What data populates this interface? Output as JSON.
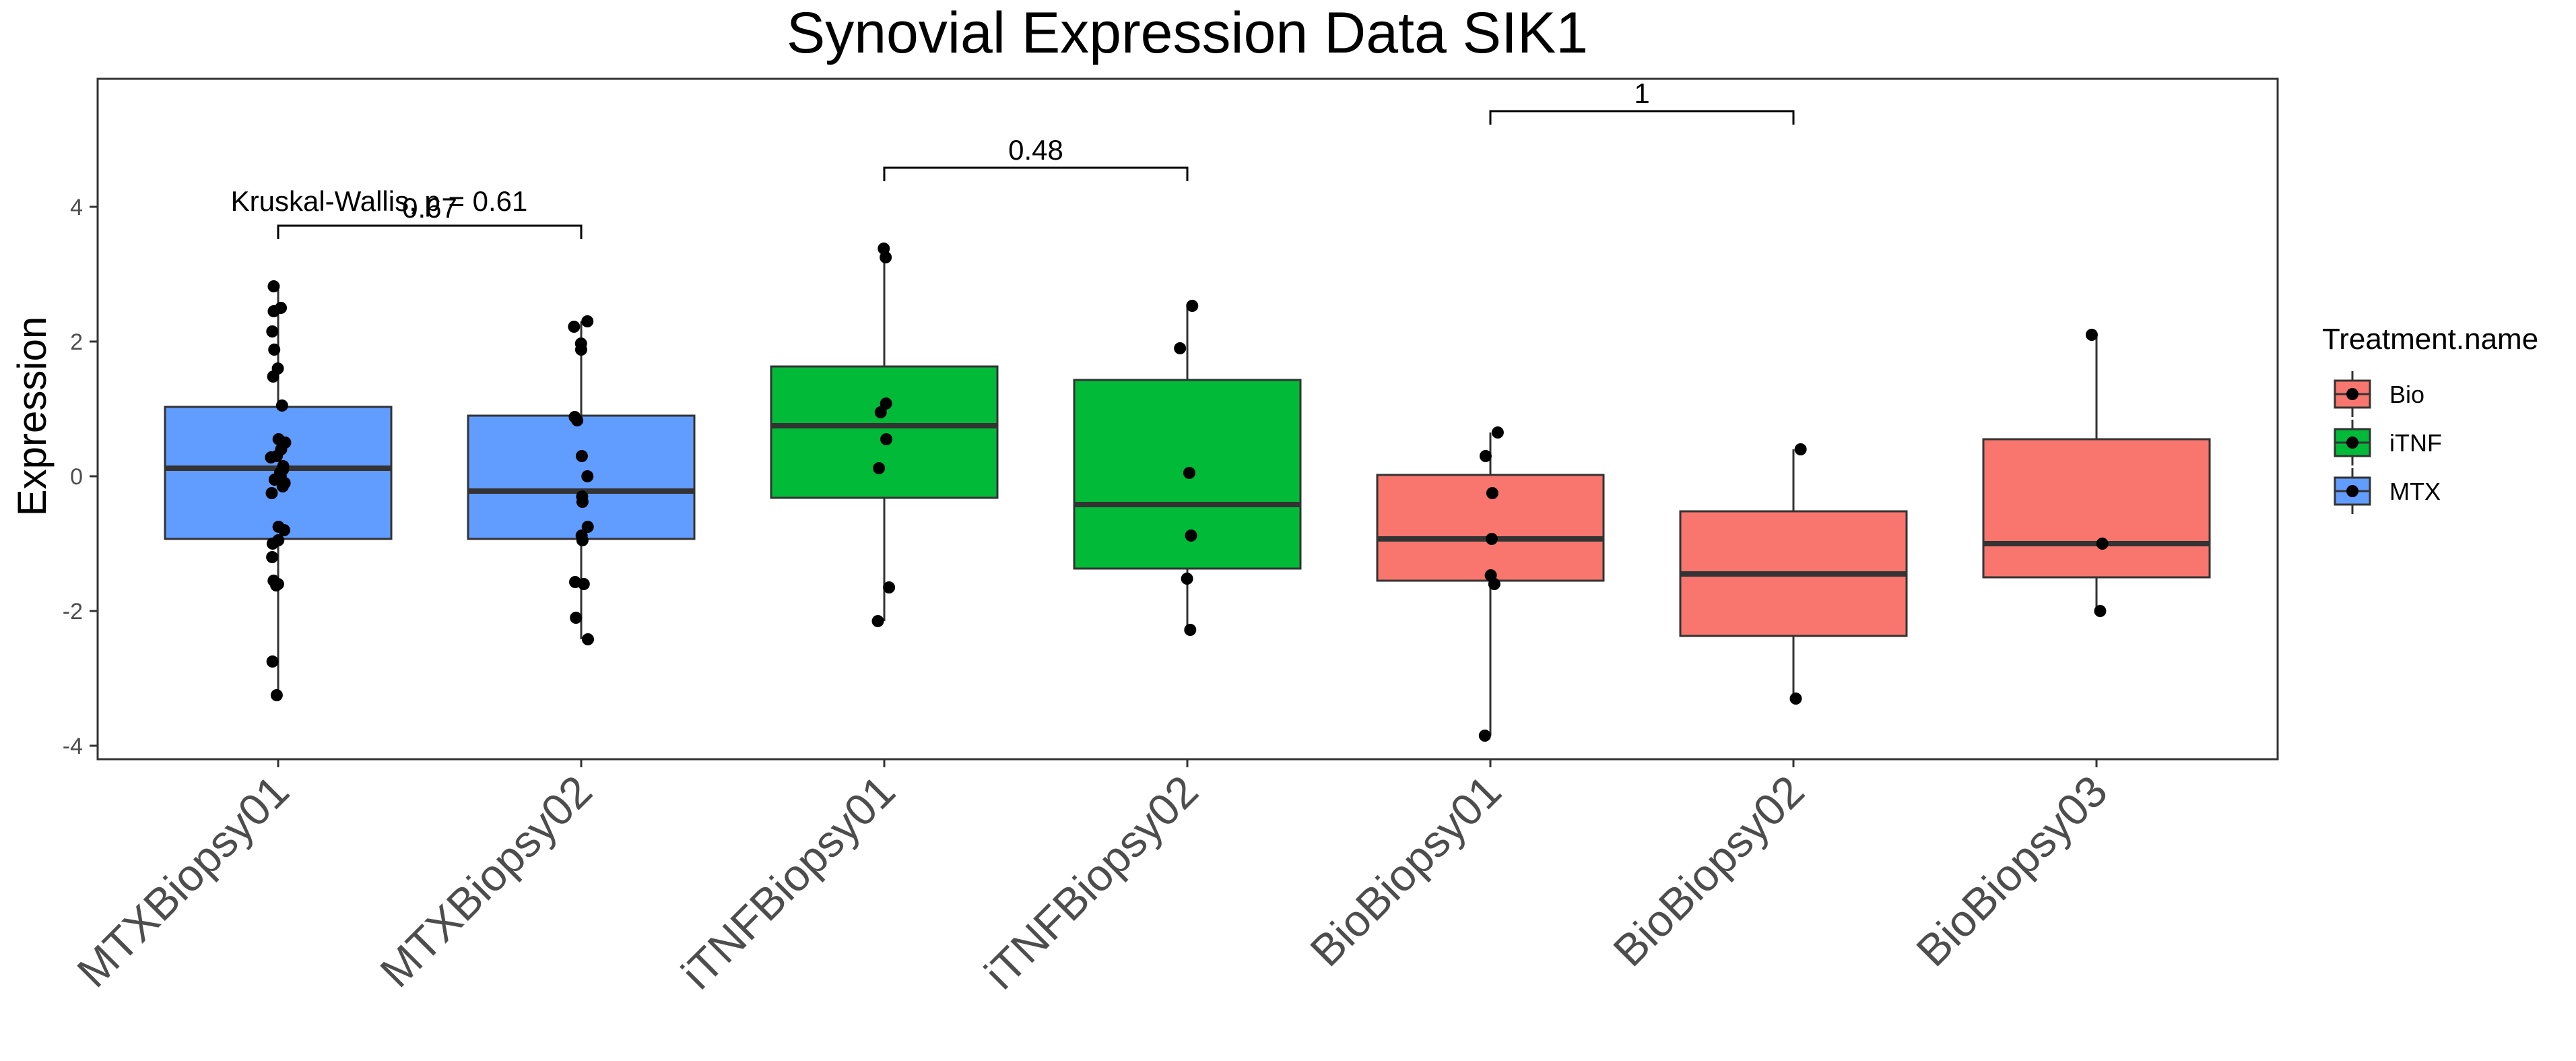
{
  "chart_data": {
    "type": "box",
    "title": "Synovial Expression Data SIK1",
    "xlabel": "",
    "ylabel": "Expression",
    "ylim": [
      -4.2,
      5.9
    ],
    "yticks": [
      -4,
      -2,
      0,
      2,
      4
    ],
    "ytick_labels": [
      "-4",
      "-2",
      "0",
      "2",
      "4"
    ],
    "grid": false,
    "legend": {
      "title": "Treatment.name",
      "position": "right",
      "items": [
        {
          "label": "Bio",
          "color": "#F8766D"
        },
        {
          "label": "iTNF",
          "color": "#00BA38"
        },
        {
          "label": "MTX",
          "color": "#619CFF"
        }
      ]
    },
    "categories": [
      "MTXBiopsy01",
      "MTXBiopsy02",
      "iTNFBiopsy01",
      "iTNFBiopsy02",
      "BioBiopsy01",
      "BioBiopsy02",
      "BioBiopsy03"
    ],
    "boxes": [
      {
        "category": "MTXBiopsy01",
        "group": "MTX",
        "color": "#619CFF",
        "whisker_low": -3.25,
        "q1": -0.93,
        "median": 0.12,
        "q3": 1.03,
        "whisker_high": 2.82,
        "points": [
          2.82,
          2.5,
          2.45,
          2.15,
          1.88,
          1.6,
          1.48,
          1.05,
          0.55,
          0.5,
          0.4,
          0.3,
          0.28,
          0.15,
          0.1,
          0.05,
          0.0,
          -0.05,
          -0.1,
          -0.15,
          -0.25,
          -0.75,
          -0.8,
          -0.95,
          -1.0,
          -1.2,
          -1.55,
          -1.6,
          -1.62,
          -2.75,
          -3.25
        ]
      },
      {
        "category": "MTXBiopsy02",
        "group": "MTX",
        "color": "#619CFF",
        "whisker_low": -2.42,
        "q1": -0.93,
        "median": -0.22,
        "q3": 0.9,
        "whisker_high": 2.3,
        "points": [
          2.3,
          2.22,
          1.97,
          1.88,
          0.88,
          0.83,
          0.3,
          0.0,
          -0.3,
          -0.38,
          -0.75,
          -0.88,
          -0.95,
          -1.57,
          -1.6,
          -2.1,
          -2.42
        ]
      },
      {
        "category": "iTNFBiopsy01",
        "group": "iTNF",
        "color": "#00BA38",
        "whisker_low": -2.15,
        "q1": -0.32,
        "median": 0.75,
        "q3": 1.63,
        "whisker_high": 3.38,
        "points": [
          3.38,
          3.25,
          1.08,
          0.95,
          0.55,
          0.12,
          -1.65,
          -2.15
        ]
      },
      {
        "category": "iTNFBiopsy02",
        "group": "iTNF",
        "color": "#00BA38",
        "whisker_low": -2.28,
        "q1": -1.37,
        "median": -0.42,
        "q3": 1.43,
        "whisker_high": 2.53,
        "points": [
          2.53,
          1.9,
          0.05,
          -0.88,
          -1.52,
          -2.28
        ]
      },
      {
        "category": "BioBiopsy01",
        "group": "Bio",
        "color": "#F8766D",
        "whisker_low": -3.85,
        "q1": -1.55,
        "median": -0.93,
        "q3": 0.02,
        "whisker_high": 0.65,
        "points": [
          0.65,
          0.3,
          -0.25,
          -0.93,
          -1.47,
          -1.6,
          -3.85
        ]
      },
      {
        "category": "BioBiopsy02",
        "group": "Bio",
        "color": "#F8766D",
        "whisker_low": -3.3,
        "q1": -2.37,
        "median": -1.45,
        "q3": -0.52,
        "whisker_high": 0.4,
        "points": [
          0.4,
          -3.3
        ]
      },
      {
        "category": "BioBiopsy03",
        "group": "Bio",
        "color": "#F8766D",
        "whisker_low": -2.0,
        "q1": -1.5,
        "median": -1.0,
        "q3": 0.55,
        "whisker_high": 2.1,
        "points": [
          2.1,
          -1.0,
          -2.0
        ]
      }
    ],
    "comparisons": [
      {
        "from": "MTXBiopsy01",
        "to": "MTXBiopsy02",
        "label": "0.67",
        "y": 3.72
      },
      {
        "from": "iTNFBiopsy01",
        "to": "iTNFBiopsy02",
        "label": "0.48",
        "y": 4.58
      },
      {
        "from": "BioBiopsy01",
        "to": "BioBiopsy02",
        "label": "1",
        "y": 5.42
      }
    ],
    "annotation": {
      "text": "Kruskal-Wallis, p = 0.61",
      "category": "MTXBiopsy01",
      "y": 4.08
    }
  }
}
